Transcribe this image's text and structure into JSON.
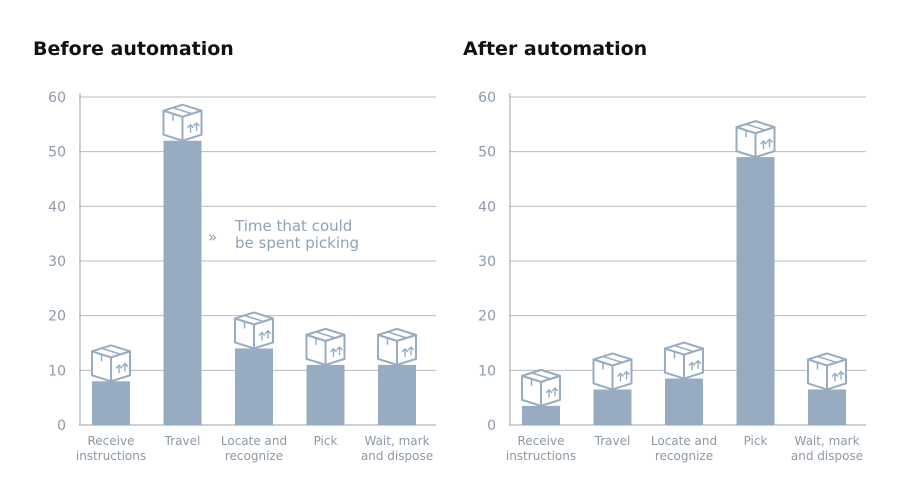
{
  "chart_data": [
    {
      "type": "bar",
      "title": "Before automation",
      "categories": [
        [
          "Receive",
          "instructions"
        ],
        [
          "Travel"
        ],
        [
          "Locate and",
          "recognize"
        ],
        [
          "Pick"
        ],
        [
          "Wait, mark",
          "and dispose"
        ]
      ],
      "values": [
        8,
        52,
        14,
        11,
        11
      ],
      "ylim": [
        0,
        60
      ],
      "yticks": [
        0,
        10,
        20,
        30,
        40,
        50,
        60
      ],
      "grid": true,
      "annotation": {
        "lines": [
          "Time that could",
          "be spent picking"
        ],
        "symbol": "»"
      }
    },
    {
      "type": "bar",
      "title": "After automation",
      "categories": [
        [
          "Receive",
          "instructions"
        ],
        [
          "Travel"
        ],
        [
          "Locate and",
          "recognize"
        ],
        [
          "Pick"
        ],
        [
          "Wait, mark",
          "and dispose"
        ]
      ],
      "values": [
        3.5,
        6.5,
        8.5,
        49,
        6.5
      ],
      "ylim": [
        0,
        60
      ],
      "yticks": [
        0,
        10,
        20,
        30,
        40,
        50,
        60
      ],
      "grid": true
    }
  ],
  "colors": {
    "bar": "#97acc1",
    "box_stroke": "#97acc1",
    "box_fill": "#ffffff",
    "grid": "#b5bcc4",
    "axis": "#9aa3ad",
    "text": "#8d99a6",
    "title": "#111111"
  },
  "icons": {
    "bar_top": "cardboard-box-icon"
  }
}
